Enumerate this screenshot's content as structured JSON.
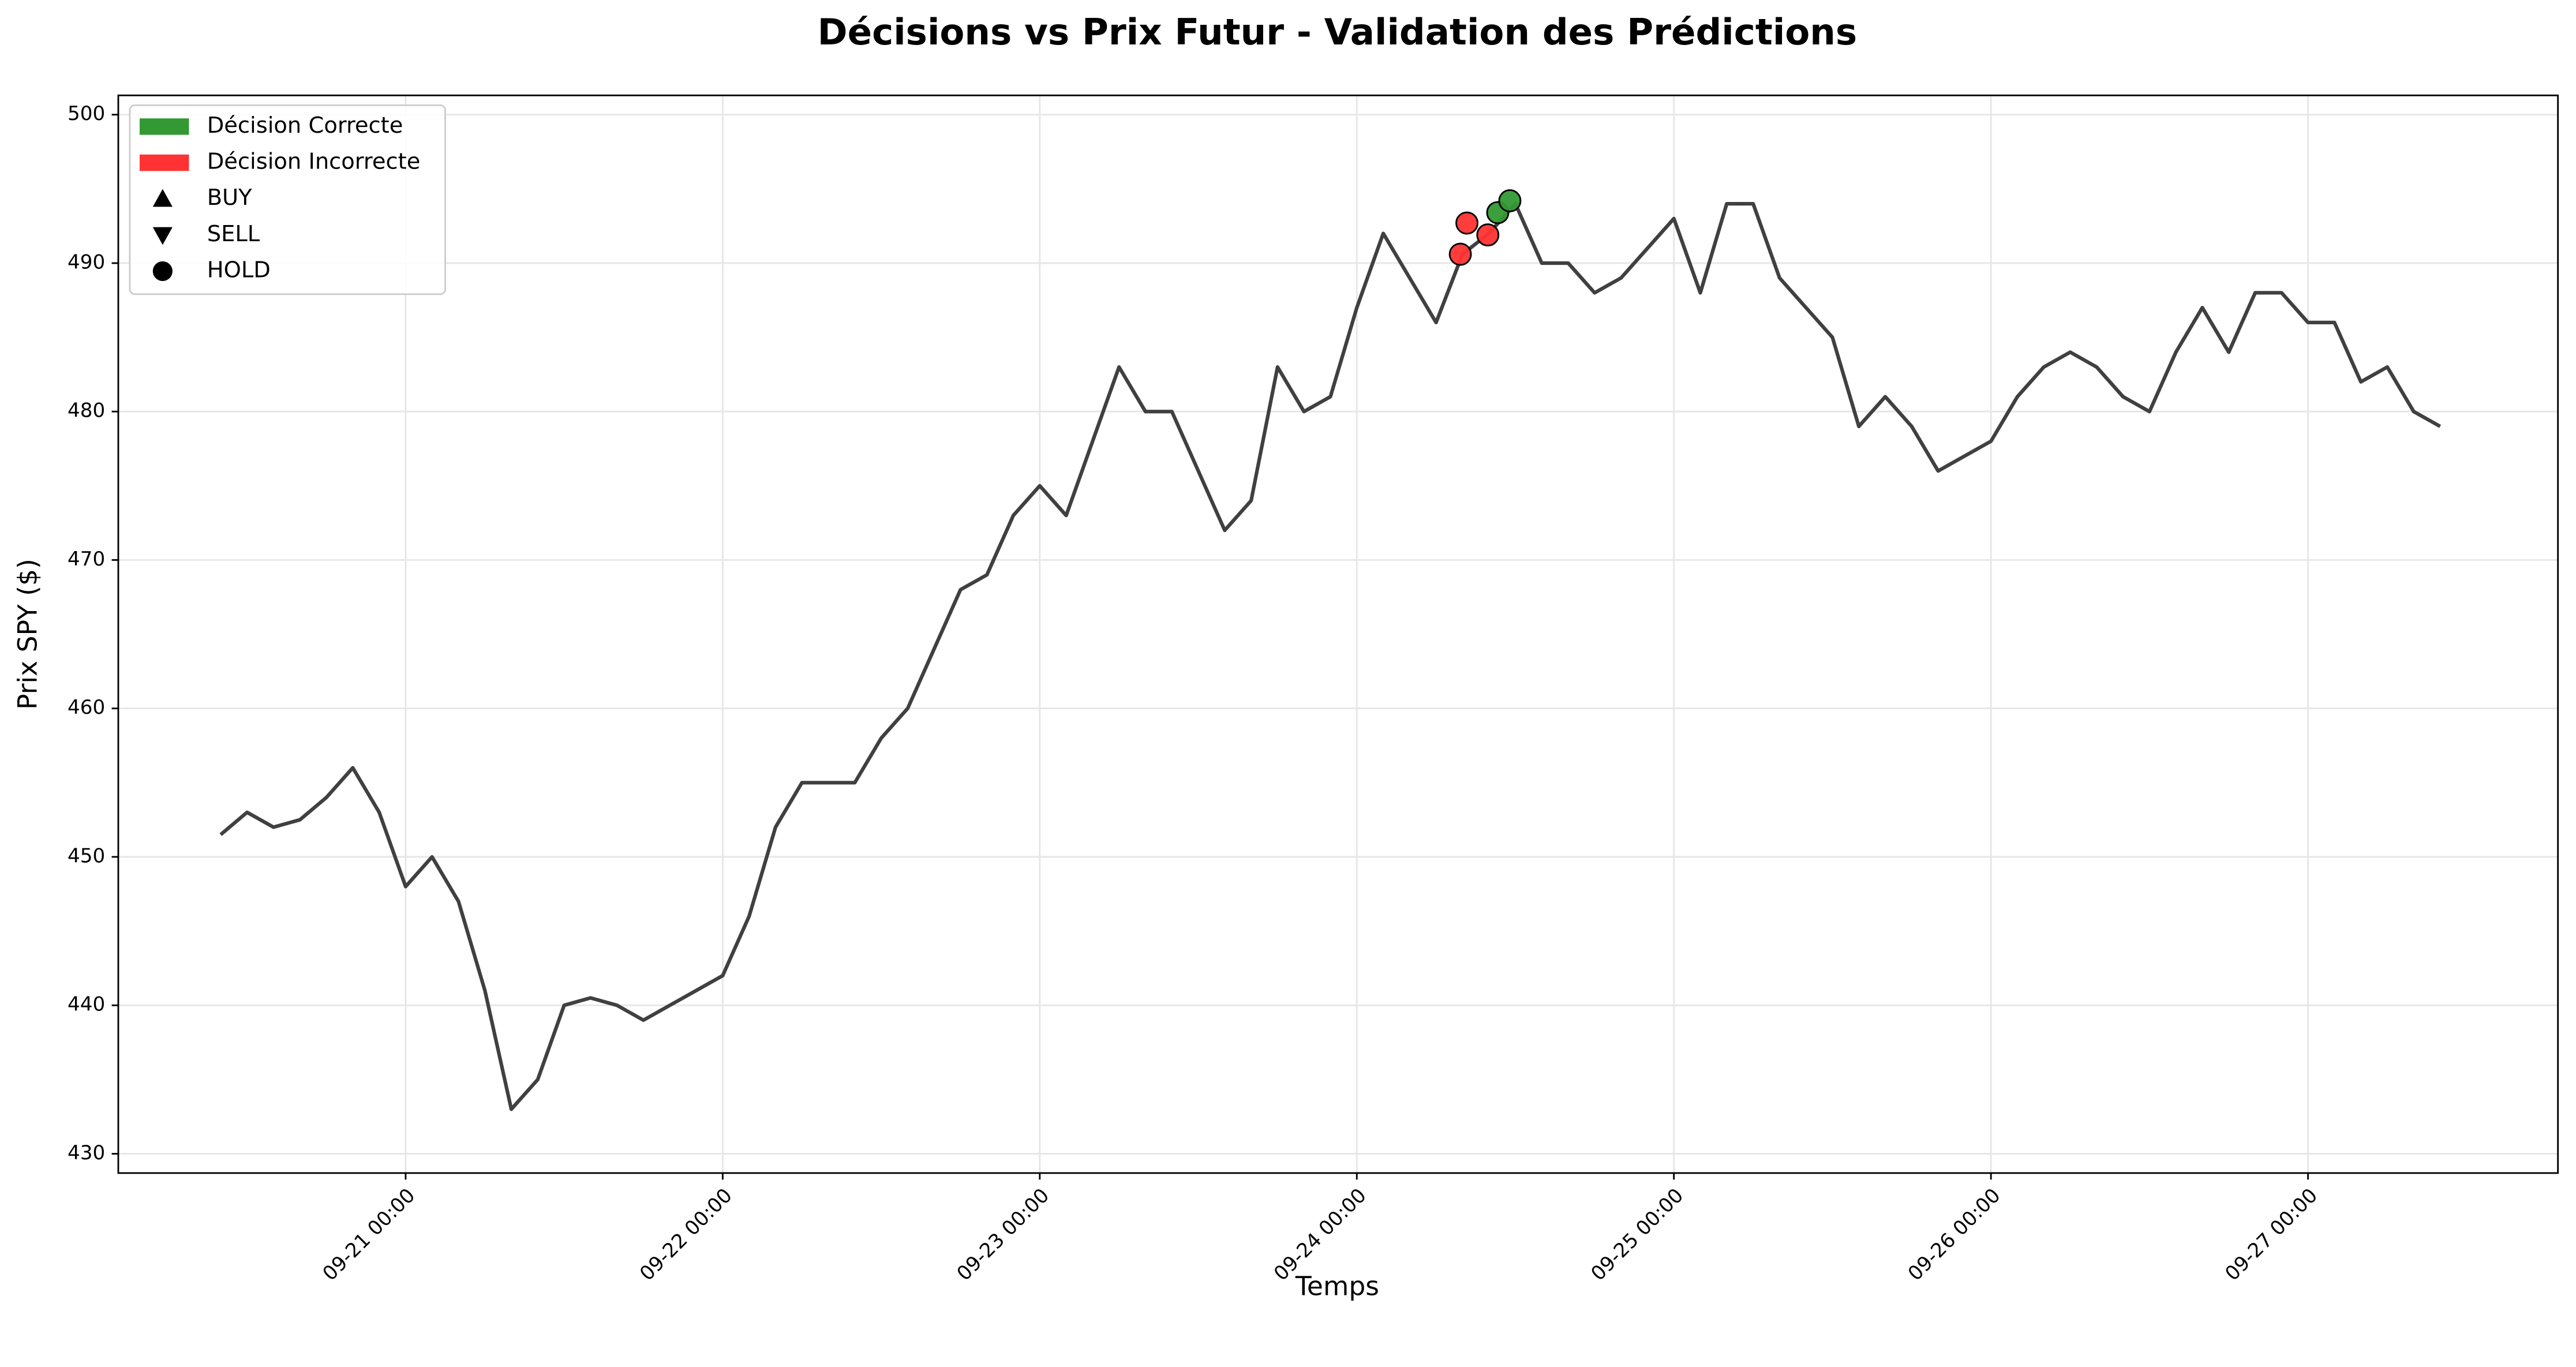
{
  "chart_data": {
    "type": "line",
    "title": "Décisions vs Prix Futur - Validation des Prédictions",
    "xlabel": "Temps",
    "ylabel": "Prix SPY ($)",
    "color": "#404040",
    "grid": true,
    "x": [
      "09-20 10:00",
      "09-20 12:00",
      "09-20 14:00",
      "09-20 16:00",
      "09-20 18:00",
      "09-20 20:00",
      "09-20 22:00",
      "09-21 00:00",
      "09-21 02:00",
      "09-21 04:00",
      "09-21 06:00",
      "09-21 08:00",
      "09-21 10:00",
      "09-21 12:00",
      "09-21 14:00",
      "09-21 16:00",
      "09-21 18:00",
      "09-21 20:00",
      "09-21 22:00",
      "09-22 00:00",
      "09-22 02:00",
      "09-22 04:00",
      "09-22 06:00",
      "09-22 08:00",
      "09-22 10:00",
      "09-22 12:00",
      "09-22 14:00",
      "09-22 16:00",
      "09-22 18:00",
      "09-22 20:00",
      "09-22 22:00",
      "09-23 00:00",
      "09-23 02:00",
      "09-23 04:00",
      "09-23 06:00",
      "09-23 08:00",
      "09-23 10:00",
      "09-23 12:00",
      "09-23 14:00",
      "09-23 16:00",
      "09-23 18:00",
      "09-23 20:00",
      "09-23 22:00",
      "09-24 00:00",
      "09-24 02:00",
      "09-24 04:00",
      "09-24 06:00",
      "09-24 08:00",
      "09-24 10:00",
      "09-24 12:00",
      "09-24 14:00",
      "09-24 16:00",
      "09-24 18:00",
      "09-24 20:00",
      "09-24 22:00",
      "09-25 00:00",
      "09-25 02:00",
      "09-25 04:00",
      "09-25 06:00",
      "09-25 08:00",
      "09-25 10:00",
      "09-25 12:00",
      "09-25 14:00",
      "09-25 16:00",
      "09-25 18:00",
      "09-25 20:00",
      "09-25 22:00",
      "09-26 00:00",
      "09-26 02:00",
      "09-26 04:00",
      "09-26 06:00",
      "09-26 08:00",
      "09-26 10:00",
      "09-26 12:00",
      "09-26 14:00",
      "09-26 16:00",
      "09-26 18:00",
      "09-26 20:00",
      "09-26 22:00",
      "09-27 00:00",
      "09-27 02:00",
      "09-27 04:00",
      "09-27 06:00",
      "09-27 08:00",
      "09-27 10:00"
    ],
    "values": [
      451.5,
      453,
      452,
      452.5,
      454,
      456,
      453,
      448,
      450,
      447,
      441,
      433,
      435,
      440,
      440.5,
      440,
      439,
      440,
      441,
      442,
      446,
      452,
      455,
      455,
      455,
      458,
      460,
      464,
      468,
      469,
      473,
      475,
      473,
      478,
      483,
      480,
      480,
      476,
      472,
      474,
      483,
      480,
      481,
      487,
      492,
      489,
      486,
      490.6,
      492,
      494,
      490,
      490,
      488,
      489,
      491,
      493,
      488,
      494,
      494,
      489,
      487,
      485,
      479,
      481,
      479,
      476,
      477,
      478,
      481,
      483,
      484,
      483,
      481,
      480,
      484,
      487,
      484,
      488,
      488,
      486,
      486,
      482,
      483,
      480,
      479
    ],
    "xlim": [
      "09-20 02:15",
      "09-27 18:55"
    ],
    "xticks": [
      "09-21 00:00",
      "09-22 00:00",
      "09-23 00:00",
      "09-24 00:00",
      "09-25 00:00",
      "09-26 00:00",
      "09-27 00:00"
    ],
    "ylim": [
      428.7,
      501.3
    ],
    "yticks": [
      430,
      440,
      450,
      460,
      470,
      480,
      490,
      500
    ],
    "decisions": {
      "marker": "o",
      "x": [
        "09-24 07:50",
        "09-24 08:20",
        "09-24 09:55",
        "09-24 10:40",
        "09-24 11:35"
      ],
      "values": [
        490.6,
        492.7,
        491.9,
        493.4,
        494.2
      ],
      "correct": [
        false,
        false,
        false,
        true,
        true
      ]
    },
    "legend": {
      "loc": "upper left",
      "entries": [
        {
          "label": "Décision Correcte",
          "color": "#339933"
        },
        {
          "label": "Décision Incorrecte",
          "color": "#ff3333"
        },
        {
          "label": "BUY",
          "marker": "^"
        },
        {
          "label": "SELL",
          "marker": "v"
        },
        {
          "label": "HOLD",
          "marker": "o"
        }
      ]
    }
  }
}
